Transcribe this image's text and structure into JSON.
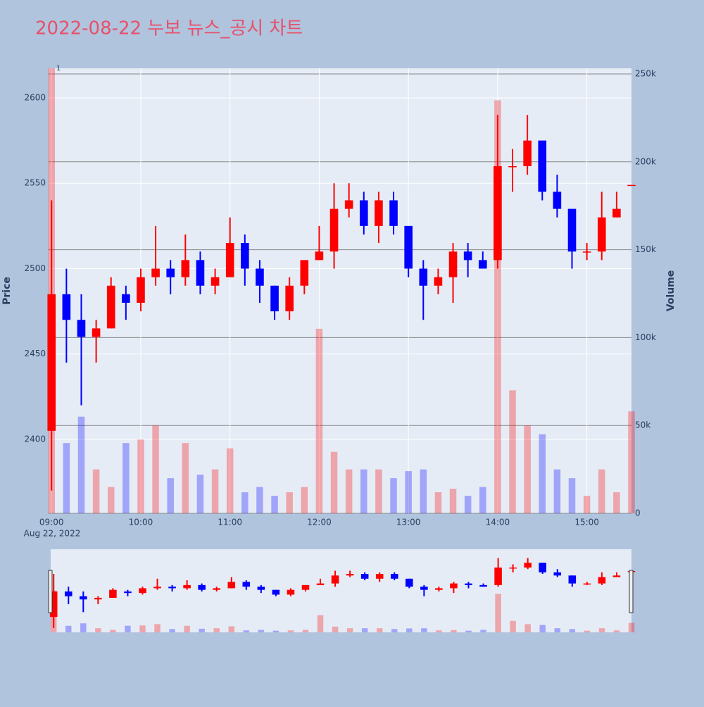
{
  "chart_data": {
    "type": "candlestick",
    "title": "2022-08-22 누보 뉴스_공시 차트",
    "annotation": "1",
    "ylabel": "Price",
    "y2label": "Volume",
    "x_date_label": "Aug 22, 2022",
    "increasing_color": "#ff0000",
    "decreasing_color": "#0000ff",
    "x": [
      "2022-08-22 09:00",
      "2022-08-22 09:10",
      "2022-08-22 09:20",
      "2022-08-22 09:30",
      "2022-08-22 09:40",
      "2022-08-22 09:50",
      "2022-08-22 10:00",
      "2022-08-22 10:10",
      "2022-08-22 10:20",
      "2022-08-22 10:30",
      "2022-08-22 10:40",
      "2022-08-22 10:50",
      "2022-08-22 11:00",
      "2022-08-22 11:10",
      "2022-08-22 11:20",
      "2022-08-22 11:30",
      "2022-08-22 11:40",
      "2022-08-22 11:50",
      "2022-08-22 12:00",
      "2022-08-22 12:10",
      "2022-08-22 12:20",
      "2022-08-22 12:30",
      "2022-08-22 12:40",
      "2022-08-22 12:50",
      "2022-08-22 13:00",
      "2022-08-22 13:10",
      "2022-08-22 13:20",
      "2022-08-22 13:30",
      "2022-08-22 13:40",
      "2022-08-22 13:50",
      "2022-08-22 14:00",
      "2022-08-22 14:10",
      "2022-08-22 14:20",
      "2022-08-22 14:30",
      "2022-08-22 14:40",
      "2022-08-22 14:50",
      "2022-08-22 15:00",
      "2022-08-22 15:10",
      "2022-08-22 15:20",
      "2022-08-22 15:30"
    ],
    "open": [
      2405,
      2485,
      2470,
      2460,
      2465,
      2485,
      2480,
      2495,
      2500,
      2495,
      2505,
      2490,
      2495,
      2515,
      2500,
      2490,
      2475,
      2490,
      2505,
      2510,
      2535,
      2540,
      2525,
      2540,
      2525,
      2500,
      2490,
      2495,
      2510,
      2505,
      2505,
      2560,
      2560,
      2575,
      2545,
      2535,
      2510,
      2510,
      2530,
      2549
    ],
    "high": [
      2540,
      2500,
      2485,
      2470,
      2495,
      2490,
      2500,
      2525,
      2505,
      2520,
      2510,
      2500,
      2530,
      2520,
      2505,
      2490,
      2495,
      2505,
      2525,
      2550,
      2550,
      2545,
      2545,
      2545,
      2525,
      2505,
      2500,
      2515,
      2515,
      2510,
      2590,
      2570,
      2590,
      2575,
      2555,
      2535,
      2515,
      2545,
      2545,
      2549
    ],
    "low": [
      2370,
      2445,
      2420,
      2445,
      2465,
      2470,
      2475,
      2490,
      2485,
      2490,
      2485,
      2485,
      2495,
      2490,
      2480,
      2470,
      2470,
      2485,
      2505,
      2500,
      2530,
      2520,
      2515,
      2520,
      2495,
      2470,
      2485,
      2480,
      2495,
      2500,
      2500,
      2545,
      2555,
      2540,
      2530,
      2500,
      2505,
      2505,
      2530,
      2549
    ],
    "close": [
      2485,
      2470,
      2460,
      2465,
      2490,
      2480,
      2495,
      2500,
      2495,
      2505,
      2490,
      2495,
      2515,
      2500,
      2490,
      2475,
      2490,
      2505,
      2510,
      2535,
      2540,
      2525,
      2540,
      2525,
      2500,
      2490,
      2495,
      2510,
      2505,
      2500,
      2560,
      2560,
      2575,
      2545,
      2535,
      2510,
      2510,
      2530,
      2535,
      2549
    ],
    "volume": [
      255000,
      40000,
      55000,
      25000,
      15000,
      40000,
      42000,
      50000,
      20000,
      40000,
      22000,
      25000,
      37000,
      12000,
      15000,
      10000,
      12000,
      15000,
      105000,
      35000,
      25000,
      25000,
      25000,
      20000,
      24000,
      25000,
      12000,
      14000,
      10000,
      15000,
      235000,
      70000,
      50000,
      45000,
      25000,
      20000,
      10000,
      25000,
      12000,
      58000
    ],
    "xlim": [
      "2022-08-22 08:58",
      "2022-08-22 15:30"
    ],
    "xticks": [
      {
        "value": "2022-08-22 09:00",
        "label": "09:00"
      },
      {
        "value": "2022-08-22 10:00",
        "label": "10:00"
      },
      {
        "value": "2022-08-22 11:00",
        "label": "11:00"
      },
      {
        "value": "2022-08-22 12:00",
        "label": "12:00"
      },
      {
        "value": "2022-08-22 13:00",
        "label": "13:00"
      },
      {
        "value": "2022-08-22 14:00",
        "label": "14:00"
      },
      {
        "value": "2022-08-22 15:00",
        "label": "15:00"
      }
    ],
    "ylim": [
      2356.7,
      2617.3
    ],
    "yticks": [
      2400,
      2450,
      2500,
      2550,
      2600
    ],
    "y2lim": [
      0,
      253200
    ],
    "y2ticks": [
      0,
      {
        "value": 50000,
        "label": "50k"
      },
      {
        "value": 100000,
        "label": "100k"
      },
      {
        "value": 150000,
        "label": "150k"
      },
      {
        "value": 200000,
        "label": "200k"
      },
      {
        "value": 250000,
        "label": "250k"
      }
    ],
    "grid": true,
    "rangeslider": true
  }
}
